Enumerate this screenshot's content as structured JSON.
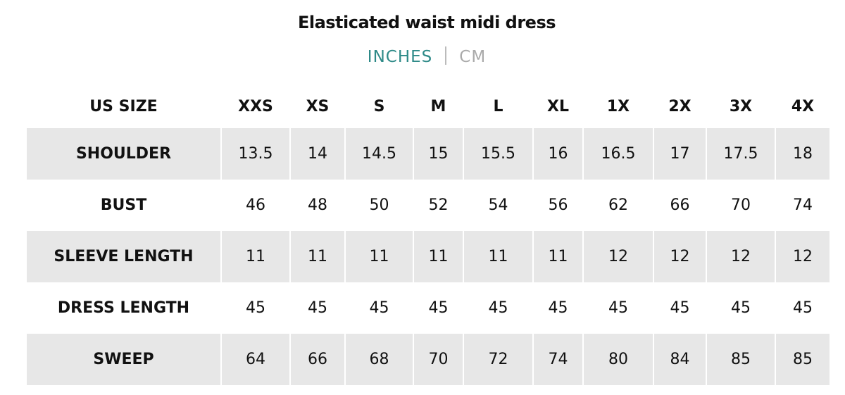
{
  "title": "Elasticated waist midi dress",
  "units": {
    "active": "INCHES",
    "inactive": "CM",
    "active_color": "#2e8a88"
  },
  "table": {
    "header": [
      "US SIZE",
      "XXS",
      "XS",
      "S",
      "M",
      "L",
      "XL",
      "1X",
      "2X",
      "3X",
      "4X"
    ],
    "rows": [
      {
        "label": "SHOULDER",
        "values": [
          "13.5",
          "14",
          "14.5",
          "15",
          "15.5",
          "16",
          "16.5",
          "17",
          "17.5",
          "18"
        ]
      },
      {
        "label": "BUST",
        "values": [
          "46",
          "48",
          "50",
          "52",
          "54",
          "56",
          "62",
          "66",
          "70",
          "74"
        ]
      },
      {
        "label": "SLEEVE LENGTH",
        "values": [
          "11",
          "11",
          "11",
          "11",
          "11",
          "11",
          "12",
          "12",
          "12",
          "12"
        ]
      },
      {
        "label": "DRESS LENGTH",
        "values": [
          "45",
          "45",
          "45",
          "45",
          "45",
          "45",
          "45",
          "45",
          "45",
          "45"
        ]
      },
      {
        "label": "SWEEP",
        "values": [
          "64",
          "66",
          "68",
          "70",
          "72",
          "74",
          "80",
          "84",
          "85",
          "85"
        ]
      }
    ]
  }
}
